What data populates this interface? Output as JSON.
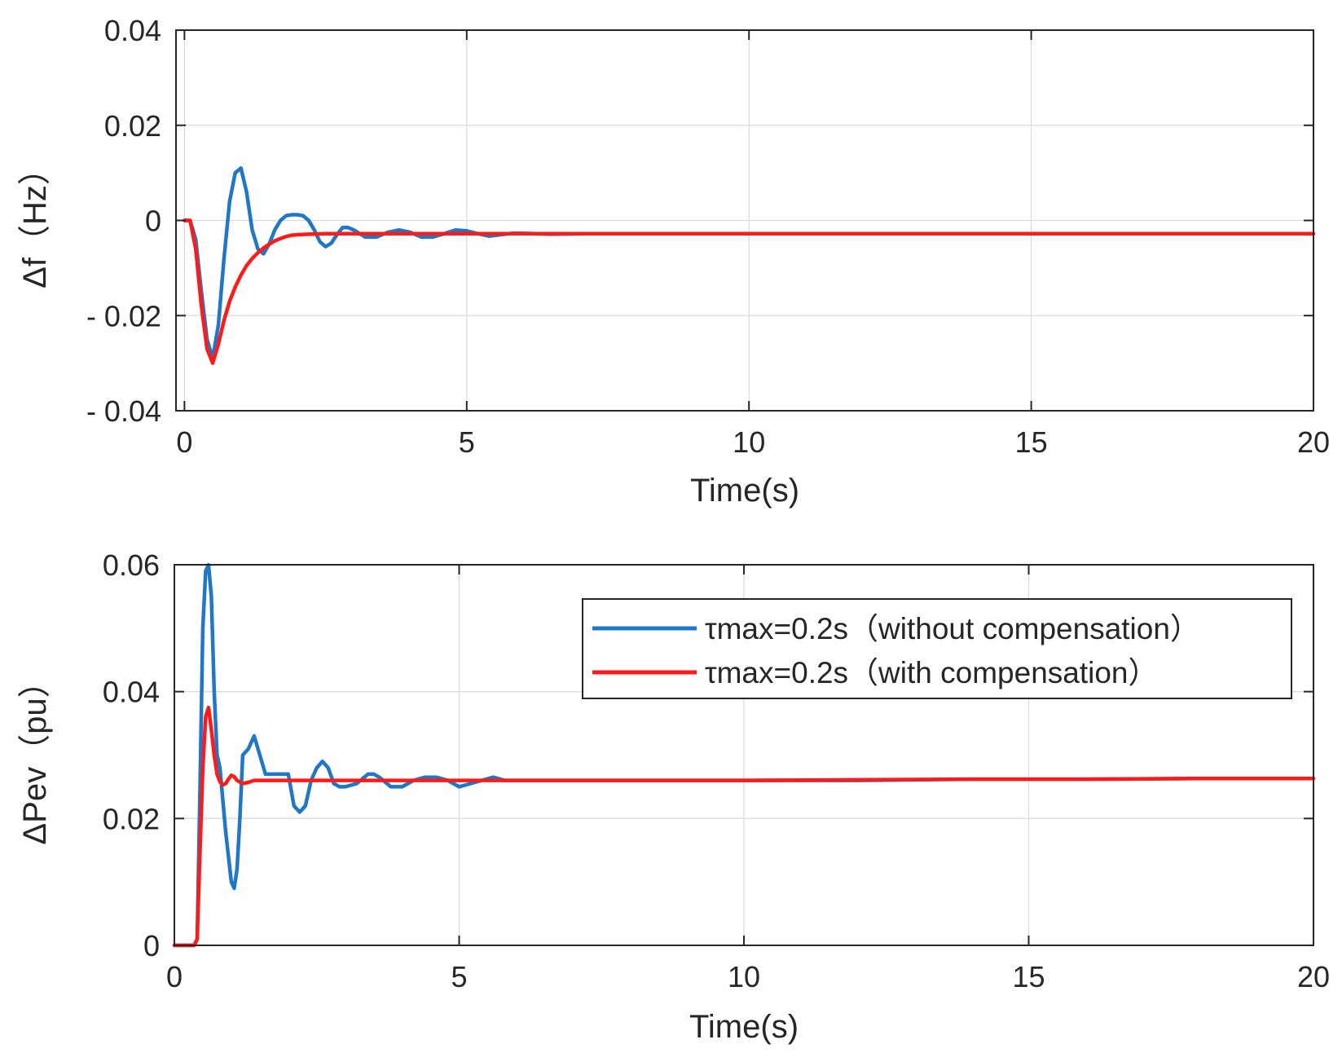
{
  "chart_data": [
    {
      "type": "line",
      "title": "",
      "xlabel": "Time(s)",
      "ylabel": "Δf（Hz）",
      "xlim": [
        -0.15,
        20
      ],
      "ylim": [
        -0.04,
        0.04
      ],
      "grid": true,
      "xticks": [
        0,
        5,
        10,
        15,
        20
      ],
      "xtick_labels": [
        "0",
        "5",
        "10",
        "15",
        "20"
      ],
      "yticks": [
        0.04,
        0.02,
        0,
        -0.02,
        -0.04
      ],
      "ytick_labels": [
        "0.04",
        "0.02",
        "0",
        "- 0.02",
        "- 0.04"
      ],
      "series": [
        {
          "name": "τmax=0.2s（without compensation）",
          "color": "#1f77c8",
          "x": [
            0,
            0.1,
            0.2,
            0.3,
            0.4,
            0.5,
            0.6,
            0.7,
            0.8,
            0.9,
            1.0,
            1.1,
            1.2,
            1.3,
            1.4,
            1.5,
            1.6,
            1.7,
            1.8,
            1.9,
            2.0,
            2.1,
            2.2,
            2.3,
            2.4,
            2.5,
            2.6,
            2.7,
            2.8,
            2.9,
            3.0,
            3.2,
            3.4,
            3.6,
            3.8,
            4.0,
            4.2,
            4.4,
            4.6,
            4.8,
            5.0,
            5.2,
            5.4,
            5.6,
            5.8,
            6.0,
            6.5,
            7.0,
            8.0,
            10.0,
            12.0,
            14.0,
            16.0,
            18.0,
            20.0
          ],
          "y": [
            0,
            0,
            -0.004,
            -0.015,
            -0.025,
            -0.029,
            -0.022,
            -0.008,
            0.004,
            0.01,
            0.011,
            0.006,
            -0.002,
            -0.006,
            -0.007,
            -0.005,
            -0.002,
            0.0,
            0.001,
            0.0012,
            0.0012,
            0.001,
            0.0,
            -0.002,
            -0.0045,
            -0.0055,
            -0.0048,
            -0.003,
            -0.0015,
            -0.0015,
            -0.002,
            -0.0035,
            -0.0035,
            -0.0025,
            -0.002,
            -0.0025,
            -0.0035,
            -0.0035,
            -0.0028,
            -0.002,
            -0.0022,
            -0.0028,
            -0.0033,
            -0.003,
            -0.0027,
            -0.0027,
            -0.0029,
            -0.0028,
            -0.0028,
            -0.0028,
            -0.0028,
            -0.0028,
            -0.0028,
            -0.0028,
            -0.0028
          ]
        },
        {
          "name": "τmax=0.2s（with compensation）",
          "color": "#ff1a1a",
          "x": [
            0,
            0.1,
            0.2,
            0.3,
            0.4,
            0.5,
            0.6,
            0.7,
            0.8,
            0.9,
            1.0,
            1.1,
            1.2,
            1.3,
            1.4,
            1.5,
            1.6,
            1.7,
            1.8,
            1.9,
            2.0,
            2.2,
            2.5,
            3.0,
            4.0,
            5.0,
            6.0,
            8.0,
            10.0,
            12.0,
            14.0,
            16.0,
            18.0,
            20.0
          ],
          "y": [
            0,
            0,
            -0.006,
            -0.018,
            -0.027,
            -0.03,
            -0.026,
            -0.021,
            -0.017,
            -0.014,
            -0.0115,
            -0.0095,
            -0.008,
            -0.0068,
            -0.0058,
            -0.005,
            -0.0043,
            -0.0038,
            -0.0034,
            -0.0031,
            -0.003,
            -0.0029,
            -0.0028,
            -0.0028,
            -0.0028,
            -0.0028,
            -0.0028,
            -0.0028,
            -0.0028,
            -0.0028,
            -0.0028,
            -0.0028,
            -0.0028,
            -0.0028
          ]
        }
      ]
    },
    {
      "type": "line",
      "title": "",
      "xlabel": "Time(s)",
      "ylabel": "ΔPev（pu）",
      "xlim": [
        0,
        20
      ],
      "ylim": [
        0,
        0.06
      ],
      "grid": true,
      "legend_position": "top-right",
      "xticks": [
        0,
        5,
        10,
        15,
        20
      ],
      "xtick_labels": [
        "0",
        "5",
        "10",
        "15",
        "20"
      ],
      "yticks": [
        0.06,
        0.04,
        0.02,
        0
      ],
      "ytick_labels": [
        "0.06",
        "0.04",
        "0.02",
        "0"
      ],
      "series": [
        {
          "name": "τmax=0.2s（without compensation）",
          "color": "#1f77c8",
          "x": [
            0,
            0.35,
            0.4,
            0.45,
            0.5,
            0.55,
            0.6,
            0.65,
            0.7,
            0.75,
            0.8,
            0.9,
            1.0,
            1.05,
            1.1,
            1.15,
            1.2,
            1.3,
            1.4,
            1.5,
            1.6,
            1.7,
            1.8,
            2.0,
            2.1,
            2.2,
            2.3,
            2.4,
            2.5,
            2.6,
            2.7,
            2.8,
            2.9,
            3.0,
            3.2,
            3.4,
            3.5,
            3.6,
            3.8,
            4.0,
            4.2,
            4.4,
            4.6,
            4.8,
            5.0,
            5.2,
            5.4,
            5.6,
            5.8,
            6.0,
            6.5,
            7.0,
            8.0,
            10.0,
            12.0,
            14.0,
            16.0,
            18.0,
            20.0
          ],
          "y": [
            0,
            0,
            0.001,
            0.025,
            0.05,
            0.059,
            0.06,
            0.055,
            0.04,
            0.03,
            0.028,
            0.018,
            0.01,
            0.009,
            0.012,
            0.02,
            0.03,
            0.031,
            0.033,
            0.03,
            0.027,
            0.027,
            0.027,
            0.027,
            0.022,
            0.021,
            0.022,
            0.026,
            0.028,
            0.029,
            0.028,
            0.0255,
            0.025,
            0.025,
            0.0255,
            0.027,
            0.027,
            0.0265,
            0.025,
            0.025,
            0.026,
            0.0265,
            0.0265,
            0.026,
            0.025,
            0.0255,
            0.026,
            0.0265,
            0.026,
            0.026,
            0.026,
            0.026,
            0.026,
            0.026,
            0.026,
            0.0262,
            0.0262,
            0.0263,
            0.0263
          ]
        },
        {
          "name": "τmax=0.2s（with compensation）",
          "color": "#ff1a1a",
          "x": [
            0,
            0.35,
            0.4,
            0.45,
            0.5,
            0.55,
            0.6,
            0.65,
            0.7,
            0.75,
            0.8,
            0.85,
            0.9,
            0.95,
            1.0,
            1.05,
            1.1,
            1.2,
            1.3,
            1.4,
            1.5,
            1.7,
            2.0,
            3.0,
            4.0,
            5.0,
            6.0,
            8.0,
            10.0,
            12.0,
            14.0,
            16.0,
            18.0,
            20.0
          ],
          "y": [
            0,
            0,
            0.001,
            0.015,
            0.028,
            0.036,
            0.0375,
            0.034,
            0.03,
            0.027,
            0.0258,
            0.0253,
            0.0255,
            0.0262,
            0.0268,
            0.0266,
            0.026,
            0.0255,
            0.0257,
            0.026,
            0.026,
            0.026,
            0.026,
            0.026,
            0.026,
            0.026,
            0.026,
            0.026,
            0.026,
            0.0261,
            0.0262,
            0.0262,
            0.0263,
            0.0263
          ]
        }
      ]
    }
  ]
}
